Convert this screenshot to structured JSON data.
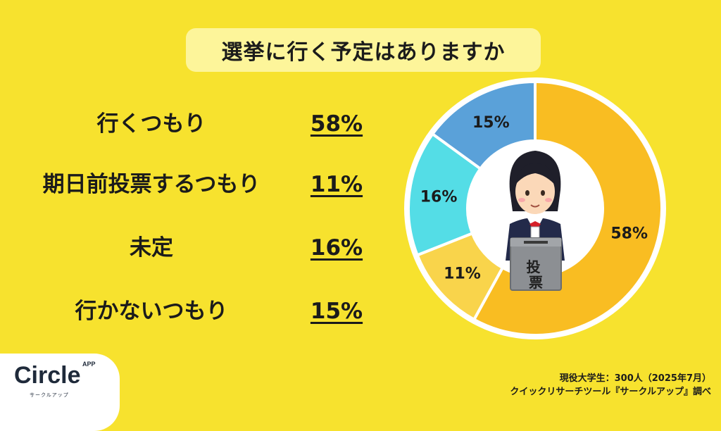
{
  "title": "選挙に行く予定はありますか",
  "rows": [
    {
      "label": "行くつもり",
      "value": "58%"
    },
    {
      "label": "期日前投票するつもり",
      "value": "11%"
    },
    {
      "label": "未定",
      "value": "16%"
    },
    {
      "label": "行かないつもり",
      "value": "15%"
    }
  ],
  "chart_data": {
    "type": "pie",
    "variant": "donut",
    "categories": [
      "行くつもり",
      "期日前投票するつもり",
      "未定",
      "行かないつもり"
    ],
    "values": [
      58,
      11,
      16,
      15
    ],
    "data_labels": [
      "58%",
      "11%",
      "16%",
      "15%"
    ],
    "colors": [
      "#f9bd22",
      "#f9d44b",
      "#54dde6",
      "#5aa1d9"
    ],
    "start": "top, clockwise"
  },
  "illustration": {
    "ballot_box_text": "投票"
  },
  "logo": {
    "name": "Circle",
    "badge": "APP",
    "sub": "サークルアップ"
  },
  "source": {
    "line1": "現役大学生：300人（2025年7月）",
    "line2": "クイックリサーチツール『サークルアップ』調べ"
  }
}
